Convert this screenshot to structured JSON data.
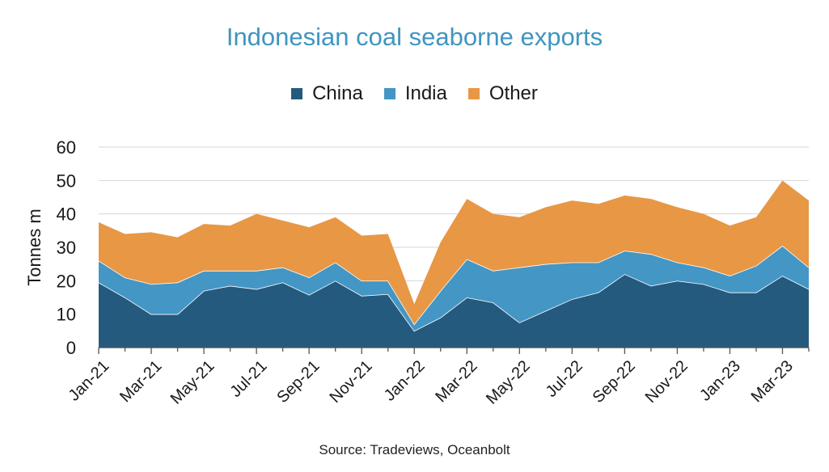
{
  "chart_data": {
    "type": "area",
    "stacked": true,
    "title": "Indonesian coal seaborne exports",
    "ylabel": "Tonnes m",
    "xlabel": "",
    "ylim": [
      0,
      60
    ],
    "yticks": [
      0,
      10,
      20,
      30,
      40,
      50,
      60
    ],
    "grid": true,
    "legend_position": "top-center",
    "x": [
      "Jan-21",
      "Feb-21",
      "Mar-21",
      "Apr-21",
      "May-21",
      "Jun-21",
      "Jul-21",
      "Aug-21",
      "Sep-21",
      "Oct-21",
      "Nov-21",
      "Dec-21",
      "Jan-22",
      "Feb-22",
      "Mar-22",
      "Apr-22",
      "May-22",
      "Jun-22",
      "Jul-22",
      "Aug-22",
      "Sep-22",
      "Oct-22",
      "Nov-22",
      "Dec-22",
      "Jan-23",
      "Feb-23",
      "Mar-23",
      "Apr-23"
    ],
    "x_tick_labels": [
      "Jan-21",
      "Mar-21",
      "May-21",
      "Jul-21",
      "Sep-21",
      "Nov-21",
      "Jan-22",
      "Mar-22",
      "May-22",
      "Jul-22",
      "Sep-22",
      "Nov-22",
      "Jan-23",
      "Mar-23"
    ],
    "series": [
      {
        "name": "China",
        "color": "#255a7f",
        "values": [
          19.5,
          15,
          10,
          10,
          17,
          18.5,
          17.5,
          19.5,
          15.8,
          20,
          15.5,
          16,
          5,
          9,
          15,
          13.5,
          7.5,
          11,
          14.5,
          16.5,
          22,
          18.5,
          20,
          19,
          16.5,
          16.5,
          21.5,
          17.5
        ]
      },
      {
        "name": "India",
        "color": "#4496c4",
        "values": [
          6.5,
          6,
          9,
          9.5,
          6,
          4.5,
          5.5,
          4.5,
          5.2,
          5.5,
          4.5,
          4,
          2,
          8,
          11.5,
          9.5,
          16.5,
          14,
          11,
          9,
          7,
          9.5,
          5.5,
          5,
          5,
          8,
          9,
          6.5
        ]
      },
      {
        "name": "Other",
        "color": "#e89745",
        "values": [
          11.5,
          13,
          15.5,
          13.5,
          14,
          13.5,
          17,
          14,
          15,
          13.5,
          13.5,
          14,
          6,
          14.5,
          18,
          17,
          15,
          17,
          18.5,
          17.5,
          16.5,
          16.5,
          16.5,
          16,
          15,
          14.5,
          19.5,
          20
        ]
      }
    ]
  },
  "source": "Source: Tradeviews, Oceanbolt"
}
